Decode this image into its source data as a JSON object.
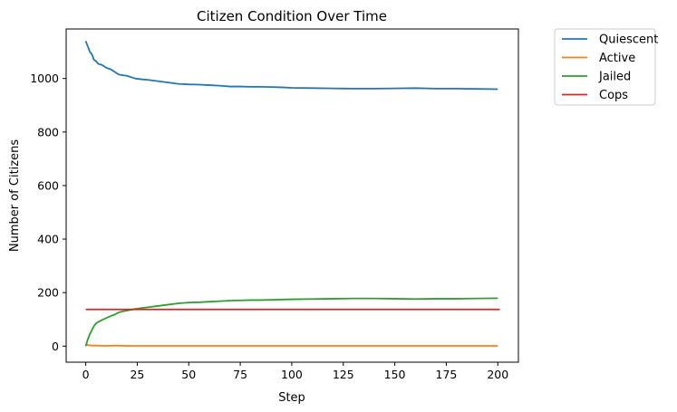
{
  "chart_data": {
    "type": "line",
    "title": "Citizen Condition Over Time",
    "xlabel": "Step",
    "ylabel": "Number of Citizens",
    "xlim": [
      -9.5,
      210
    ],
    "ylim": [
      -60,
      1185
    ],
    "xticks": [
      0,
      25,
      50,
      75,
      100,
      125,
      150,
      175,
      200
    ],
    "yticks": [
      0,
      200,
      400,
      600,
      800,
      1000
    ],
    "grid": false,
    "legend_position": "outside-top-right",
    "series": [
      {
        "name": "Quiescent",
        "color": "#1f77b4",
        "x": [
          0,
          1,
          2,
          3,
          4,
          5,
          6,
          8,
          10,
          12,
          14,
          16,
          18,
          20,
          22,
          24,
          27,
          30,
          35,
          40,
          45,
          50,
          55,
          60,
          65,
          70,
          75,
          80,
          85,
          90,
          95,
          100,
          110,
          120,
          130,
          140,
          150,
          160,
          170,
          180,
          190,
          200
        ],
        "y": [
          1140,
          1120,
          1100,
          1090,
          1070,
          1065,
          1055,
          1050,
          1040,
          1035,
          1025,
          1015,
          1012,
          1010,
          1005,
          1000,
          997,
          995,
          990,
          985,
          980,
          978,
          977,
          975,
          973,
          970,
          970,
          969,
          969,
          968,
          967,
          965,
          964,
          963,
          962,
          962,
          963,
          964,
          962,
          962,
          961,
          960
        ]
      },
      {
        "name": "Active",
        "color": "#ff7f0e",
        "x": [
          0,
          1,
          3,
          5,
          10,
          15,
          20,
          30,
          40,
          50,
          75,
          100,
          125,
          150,
          175,
          200
        ],
        "y": [
          10,
          4,
          2,
          2,
          1,
          2,
          1,
          1,
          1,
          1,
          1,
          1,
          1,
          1,
          1,
          1
        ]
      },
      {
        "name": "Jailed",
        "color": "#2ca02c",
        "x": [
          0,
          1,
          2,
          3,
          4,
          5,
          6,
          8,
          10,
          12,
          14,
          16,
          18,
          20,
          22,
          24,
          27,
          30,
          35,
          40,
          45,
          50,
          55,
          60,
          65,
          70,
          75,
          80,
          85,
          90,
          95,
          100,
          110,
          120,
          130,
          140,
          150,
          160,
          170,
          180,
          190,
          200
        ],
        "y": [
          0,
          25,
          45,
          60,
          75,
          85,
          90,
          98,
          105,
          112,
          118,
          126,
          130,
          133,
          136,
          139,
          142,
          145,
          150,
          155,
          160,
          163,
          164,
          166,
          168,
          170,
          171,
          172,
          172,
          173,
          174,
          175,
          176,
          177,
          178,
          178,
          177,
          176,
          177,
          177,
          178,
          179
        ]
      },
      {
        "name": "Cops",
        "color": "#d62728",
        "x": [
          0,
          201
        ],
        "y": [
          137,
          137
        ]
      }
    ]
  }
}
